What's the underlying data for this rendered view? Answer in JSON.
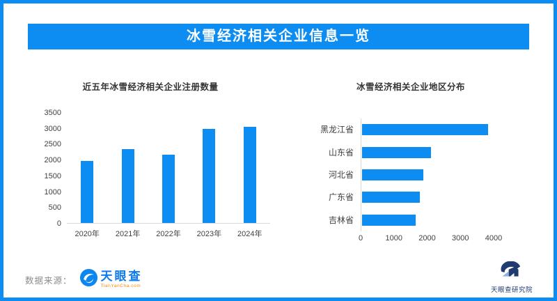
{
  "page": {
    "header_title": "冰雪经济相关企业信息一览"
  },
  "colors": {
    "accent": "#0d8df2",
    "bar_blue": "#0d8df2",
    "title_text": "#333333",
    "axis_text": "#404040",
    "axis_line": "#d9d9d9",
    "source_text": "#8c8c8c",
    "tyc_logo_blue": "#0d7bec",
    "tyc_sub_orange": "#ff8400",
    "research_navy": "#1f3b70"
  },
  "chart_data": [
    {
      "type": "bar",
      "orientation": "vertical",
      "title": "近五年冰雪经济相关企业注册数量",
      "categories": [
        "2020年",
        "2021年",
        "2022年",
        "2023年",
        "2024年"
      ],
      "values": [
        1950,
        2330,
        2150,
        2980,
        3040
      ],
      "xlabel": "",
      "ylabel": "",
      "ylim": [
        0,
        3500
      ],
      "yticks": [
        0,
        500,
        1000,
        1500,
        2000,
        2500,
        3000,
        3500
      ],
      "grid": false,
      "legend": "none",
      "bar_color": "#0d8df2"
    },
    {
      "type": "bar",
      "orientation": "horizontal",
      "title": "冰雪经济相关企业地区分布",
      "categories": [
        "黑龙江省",
        "山东省",
        "河北省",
        "广东省",
        "吉林省"
      ],
      "values": [
        3800,
        2080,
        1840,
        1740,
        1620
      ],
      "xlabel": "",
      "ylabel": "",
      "xlim": [
        0,
        4000
      ],
      "xticks": [
        0,
        1000,
        2000,
        3000,
        4000
      ],
      "grid": false,
      "legend": "none",
      "bar_color": "#0d8df2"
    }
  ],
  "footer": {
    "source_label": "数据来源：",
    "logo_word": "天眼查",
    "logo_sub": "TianYanCha.com",
    "research_label": "天眼查研究院"
  }
}
